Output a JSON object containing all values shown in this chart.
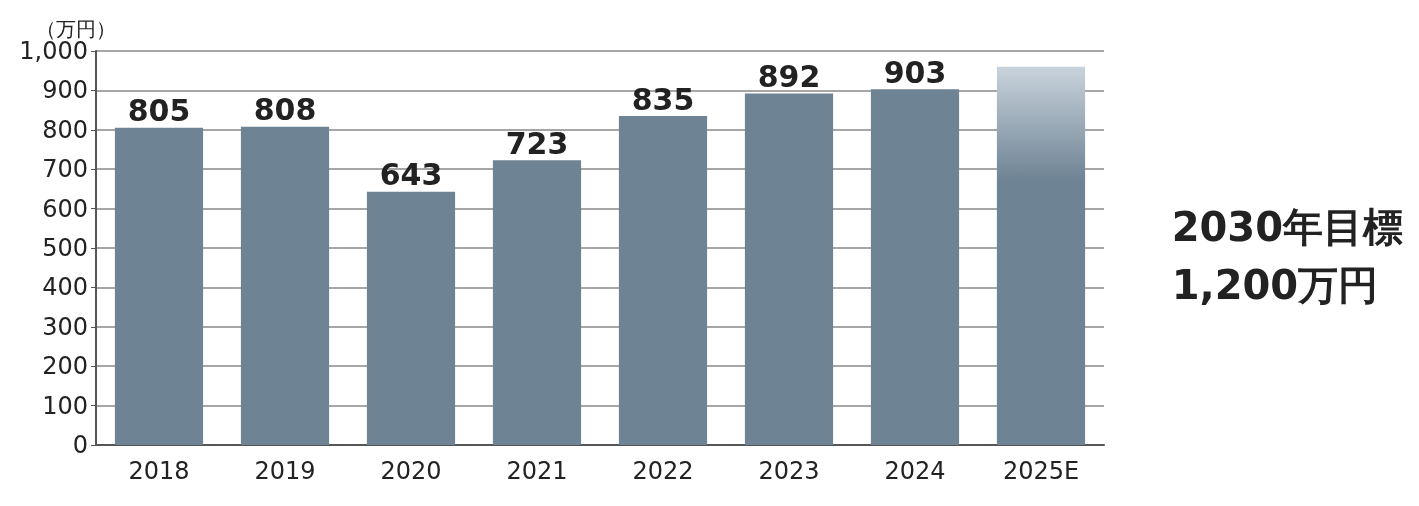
{
  "chart_data": {
    "type": "bar",
    "ylabel": "（万円）",
    "categories": [
      "2018",
      "2019",
      "2020",
      "2021",
      "2022",
      "2023",
      "2024",
      "2025E"
    ],
    "values": [
      805,
      808,
      643,
      723,
      835,
      892,
      903,
      960
    ],
    "value_labels": [
      "805",
      "808",
      "643",
      "723",
      "835",
      "892",
      "903",
      null
    ],
    "color": "#6e8394",
    "ylim": [
      0,
      1000
    ],
    "yticks": [
      0,
      100,
      200,
      300,
      400,
      500,
      600,
      700,
      800,
      900,
      {
        "value": 1000,
        "label": "1,000"
      }
    ],
    "grid": "y",
    "annotations": [
      "2030年目標\n1,200万円"
    ]
  }
}
